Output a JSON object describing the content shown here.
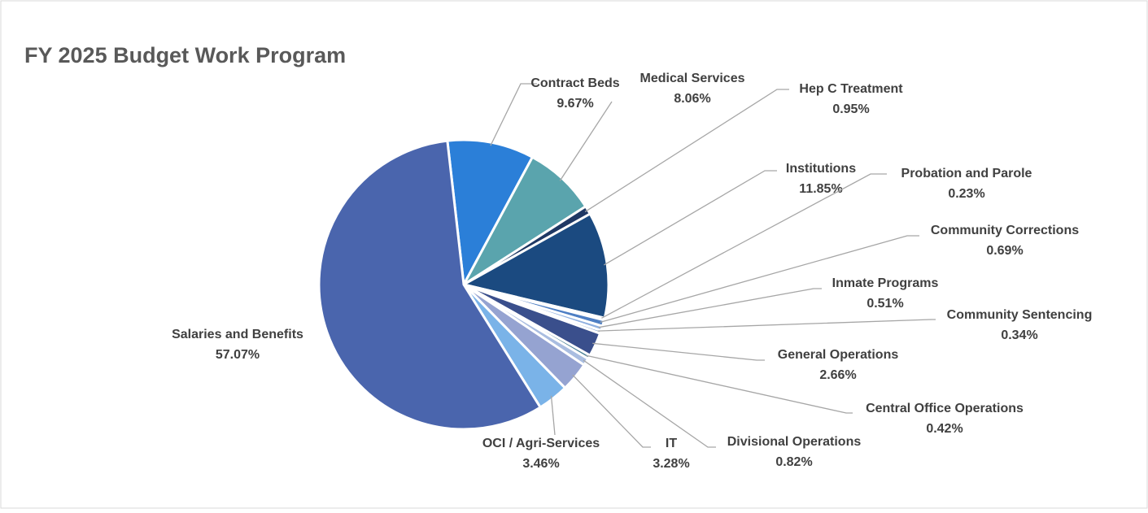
{
  "chart_data": {
    "type": "pie",
    "title": "FY 2025 Budget Work Program",
    "categories": [
      "Contract Beds",
      "Medical Services",
      "Hep C Treatment",
      "Institutions",
      "Probation and Parole",
      "Community Corrections",
      "Inmate Programs",
      "Community Sentencing",
      "General Operations",
      "Central Office Operations",
      "Divisional Operations",
      "IT",
      "OCI / Agri-Services",
      "Salaries and Benefits"
    ],
    "values": [
      9.67,
      8.06,
      0.95,
      11.85,
      0.23,
      0.69,
      0.51,
      0.34,
      2.66,
      0.42,
      0.82,
      3.28,
      3.46,
      57.07
    ],
    "value_labels": [
      "9.67%",
      "8.06%",
      "0.95%",
      "11.85%",
      "0.23%",
      "0.69%",
      "0.51%",
      "0.34%",
      "2.66%",
      "0.42%",
      "0.82%",
      "3.28%",
      "3.46%",
      "57.07%"
    ],
    "colors": [
      "#2b7fd8",
      "#5aa4ad",
      "#1f3864",
      "#1b4a80",
      "#5b8fd6",
      "#4e7fc4",
      "#8fb0e0",
      "#7fa0d0",
      "#3a4f8c",
      "#4a8095",
      "#a9bde0",
      "#95a3d1",
      "#7ab3e8",
      "#4a65ad"
    ]
  }
}
